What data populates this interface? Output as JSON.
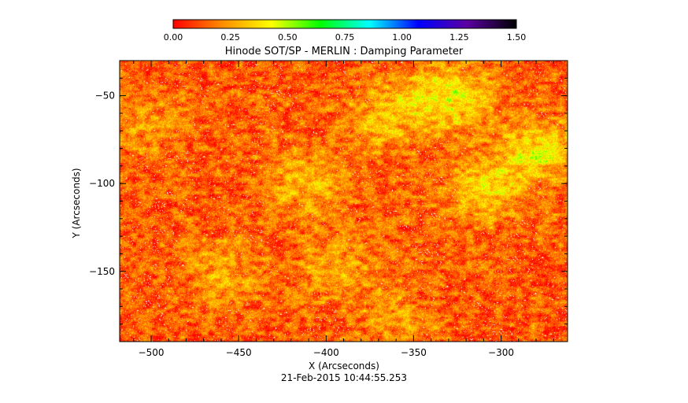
{
  "chart_data": {
    "type": "heatmap",
    "title": "Hinode SOT/SP - MERLIN : Damping Parameter",
    "xlabel": "X (Arcseconds)",
    "ylabel": "Y (Arcseconds)",
    "timestamp": "21-Feb-2015 10:44:55.253",
    "xlim": [
      -518,
      -262
    ],
    "ylim": [
      -190,
      -30
    ],
    "x_ticks": [
      -500,
      -450,
      -400,
      -350,
      -300
    ],
    "x_tick_labels": [
      "−500",
      "−450",
      "−400",
      "−350",
      "−300"
    ],
    "y_ticks": [
      -50,
      -100,
      -150
    ],
    "y_tick_labels": [
      "−50",
      "−100",
      "−150"
    ],
    "colorbar": {
      "min": 0.0,
      "max": 1.5,
      "ticks": [
        0.0,
        0.25,
        0.5,
        0.75,
        1.0,
        1.25,
        1.5
      ],
      "tick_labels": [
        "0.00",
        "0.25",
        "0.50",
        "0.75",
        "1.00",
        "1.25",
        "1.50"
      ],
      "colors": [
        "#ff0000",
        "#ff8c00",
        "#ffff00",
        "#00ff00",
        "#00ffff",
        "#0000ff",
        "#5a00a0",
        "#000000"
      ]
    },
    "field": {
      "typical_value": 0.15,
      "max_observed": 0.85,
      "elevated_regions": [
        {
          "x": -412,
          "y": -100,
          "value": 0.4
        },
        {
          "x": -330,
          "y": -50,
          "value": 0.55
        },
        {
          "x": -310,
          "y": -103,
          "value": 0.45
        },
        {
          "x": -278,
          "y": -82,
          "value": 0.5
        },
        {
          "x": -365,
          "y": -60,
          "value": 0.4
        },
        {
          "x": -395,
          "y": -150,
          "value": 0.35
        },
        {
          "x": -460,
          "y": -150,
          "value": 0.35
        },
        {
          "x": -503,
          "y": -65,
          "value": 0.3
        },
        {
          "x": -360,
          "y": -178,
          "value": 0.3
        }
      ]
    }
  }
}
